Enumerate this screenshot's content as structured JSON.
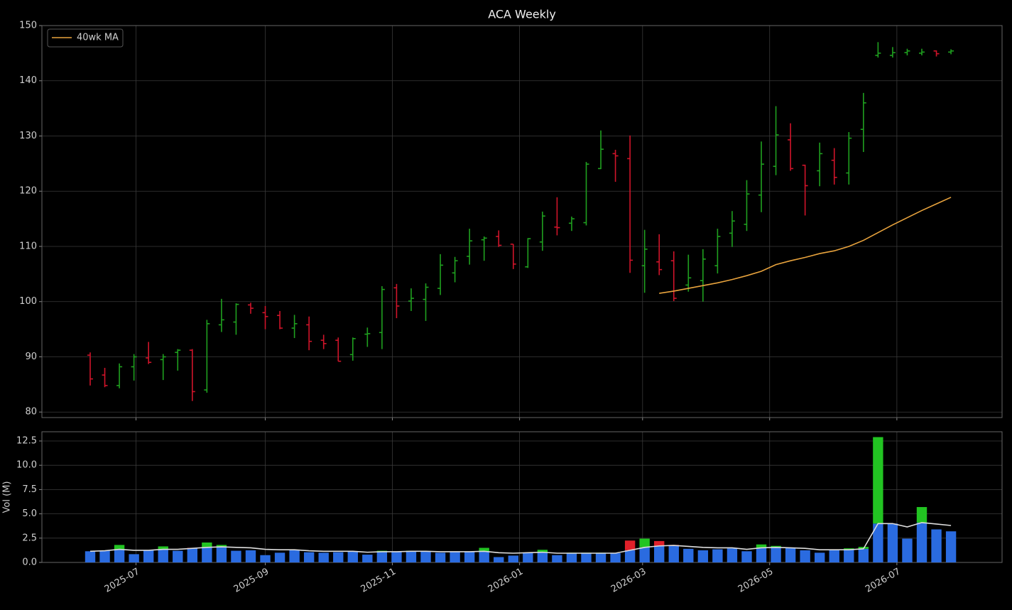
{
  "chart_data": [
    {
      "type": "ohlc",
      "title": "ACA Weekly",
      "open": [
        90.3,
        86.7,
        84.8,
        88.2,
        89.8,
        89.5,
        90.8,
        91.2,
        84,
        95.8,
        96.3,
        99.4,
        98,
        97.5,
        95.2,
        95.8,
        93,
        93,
        90.4,
        94.1,
        94.4,
        102.5,
        100.1,
        100.4,
        102.4,
        105.2,
        108.2,
        111.2,
        111.8,
        110.4,
        106.3,
        110.8,
        113.5,
        114.2,
        114.3,
        124.1,
        126.8,
        125.9,
        106.5,
        107.2,
        107.4,
        103,
        103.8,
        106.5,
        112.4,
        114,
        119.3,
        124.5,
        129.3,
        124.7,
        123.7,
        125.6,
        123.3,
        131.2,
        144.6,
        144.6,
        145.1,
        145,
        145.4,
        145.2
      ],
      "high": [
        90.8,
        88,
        88.8,
        90.5,
        92.7,
        90.5,
        91.4,
        91.4,
        96.7,
        100.5,
        99.7,
        99.8,
        99.2,
        98.3,
        97.6,
        97.3,
        94,
        93.5,
        93.5,
        95.3,
        102.8,
        103.2,
        102.4,
        103.3,
        108.6,
        108.1,
        113.2,
        111.8,
        112.9,
        110.4,
        111.5,
        116.3,
        118.9,
        115.4,
        125.3,
        131,
        127.5,
        130.1,
        113,
        112.2,
        109.1,
        108.5,
        109.5,
        113.2,
        116.4,
        122,
        129,
        135.4,
        132.3,
        124.8,
        128.8,
        127.8,
        130.7,
        137.8,
        147,
        146.1,
        145.8,
        145.8,
        145.5,
        145.7
      ],
      "low": [
        84.8,
        84.5,
        84.3,
        85.7,
        88.7,
        85.8,
        87.5,
        82,
        83.5,
        94.5,
        94,
        97.8,
        95,
        95,
        93.4,
        91.2,
        91.4,
        89.2,
        89.3,
        91.8,
        91.4,
        97,
        98.3,
        96.5,
        101.2,
        103.5,
        106.7,
        107.4,
        109.9,
        105.9,
        106.1,
        109.2,
        112,
        112.8,
        113.8,
        124,
        121.7,
        105.2,
        101.6,
        104.8,
        100.1,
        101.8,
        100,
        105.1,
        109.9,
        112.8,
        116.2,
        122.9,
        123.7,
        115.6,
        120.9,
        121.2,
        121.2,
        127.1,
        144.2,
        144.2,
        144.6,
        144.6,
        144.4,
        144.8
      ],
      "close": [
        86,
        84.8,
        88.2,
        90,
        89,
        90,
        91.2,
        83.7,
        96,
        96.7,
        99.5,
        98.8,
        97.3,
        95.2,
        96,
        92.8,
        92.4,
        89.2,
        93.3,
        94.2,
        102.2,
        99.2,
        100.6,
        102.6,
        106.6,
        107.4,
        111,
        111.5,
        110.2,
        106.8,
        111.4,
        115.5,
        113.4,
        115,
        124.9,
        127.6,
        126.4,
        107.5,
        109.5,
        105.8,
        100.6,
        104.3,
        107.7,
        111.8,
        114.6,
        119.5,
        124.9,
        130.2,
        124.1,
        121,
        126.8,
        122.5,
        129.6,
        136,
        145,
        145.1,
        145.4,
        145.2,
        144.9,
        145.4
      ],
      "up_color": "#1fa01f",
      "down_color": "#d0142a",
      "series": [
        {
          "name": "40wk MA",
          "color": "#e8a33d",
          "values": [
            null,
            null,
            null,
            null,
            null,
            null,
            null,
            null,
            null,
            null,
            null,
            null,
            null,
            null,
            null,
            null,
            null,
            null,
            null,
            null,
            null,
            null,
            null,
            null,
            null,
            null,
            null,
            null,
            null,
            null,
            null,
            null,
            null,
            null,
            null,
            null,
            null,
            null,
            null,
            101.5,
            101.9,
            102.4,
            102.9,
            103.4,
            104,
            104.7,
            105.5,
            106.7,
            107.4,
            108,
            108.7,
            109.2,
            110,
            111.1,
            112.5,
            113.9,
            115.2,
            116.5,
            117.7,
            118.9
          ]
        }
      ],
      "ylim": [
        79,
        150
      ],
      "yticks": [
        80,
        90,
        100,
        110,
        120,
        130,
        140,
        150
      ],
      "xlim": [
        -3.31,
        62.5
      ],
      "grid": true,
      "legend": "upper left"
    },
    {
      "type": "bar",
      "ylabel": "Vol (M)",
      "values": [
        1.15,
        1.2,
        1.8,
        0.85,
        1.25,
        1.65,
        1.2,
        1.5,
        2.05,
        1.8,
        1.2,
        1.25,
        0.75,
        1,
        1.3,
        1.05,
        1,
        1.05,
        1.1,
        0.8,
        1.2,
        1.1,
        1.2,
        1.15,
        1,
        1.1,
        1.1,
        1.5,
        0.55,
        0.7,
        1,
        1.3,
        0.75,
        1,
        1,
        1,
        0.95,
        2.25,
        2.45,
        2.2,
        1.8,
        1.4,
        1.25,
        1.35,
        1.45,
        1.15,
        1.85,
        1.7,
        1.5,
        1.25,
        1,
        1.35,
        1.45,
        1.6,
        12.9,
        4,
        2.45,
        5.7,
        3.4,
        3.2
      ],
      "color": "#2a6be0",
      "up_color": "#22c422",
      "down_color": "#e0202a",
      "series": [
        {
          "color": "#dddddd",
          "values": [
            1.15,
            1.2,
            1.35,
            1.25,
            1.25,
            1.35,
            1.35,
            1.45,
            1.55,
            1.6,
            1.55,
            1.5,
            1.35,
            1.3,
            1.3,
            1.2,
            1.15,
            1.15,
            1.15,
            1.05,
            1.1,
            1.1,
            1.15,
            1.15,
            1.1,
            1.1,
            1.1,
            1.15,
            1,
            0.95,
            1,
            1.05,
            0.95,
            0.95,
            0.95,
            0.95,
            0.95,
            1.25,
            1.55,
            1.7,
            1.75,
            1.65,
            1.55,
            1.5,
            1.5,
            1.35,
            1.5,
            1.55,
            1.5,
            1.45,
            1.3,
            1.3,
            1.3,
            1.4,
            4,
            4,
            3.65,
            4.1,
            3.95,
            3.8
          ]
        }
      ],
      "ylim": [
        0,
        13.45
      ],
      "yticks": [
        {
          "value": 0,
          "label": "0.0"
        },
        {
          "value": 2.5,
          "label": "2.5"
        },
        {
          "value": 5,
          "label": "5.0"
        },
        {
          "value": 7.5,
          "label": "7.5"
        },
        {
          "value": 10,
          "label": "10.0"
        },
        {
          "value": 12.5,
          "label": "12.5"
        }
      ],
      "xlim": [
        -3.31,
        62.5
      ],
      "xticks": [
        {
          "value": 3.14,
          "label": "2025-07"
        },
        {
          "value": 12,
          "label": "2025-09"
        },
        {
          "value": 20.71,
          "label": "2025-11"
        },
        {
          "value": 29.43,
          "label": "2026-01"
        },
        {
          "value": 37.86,
          "label": "2026-03"
        },
        {
          "value": 46.57,
          "label": "2026-05"
        },
        {
          "value": 55.29,
          "label": "2026-07"
        }
      ],
      "grid": true
    }
  ]
}
